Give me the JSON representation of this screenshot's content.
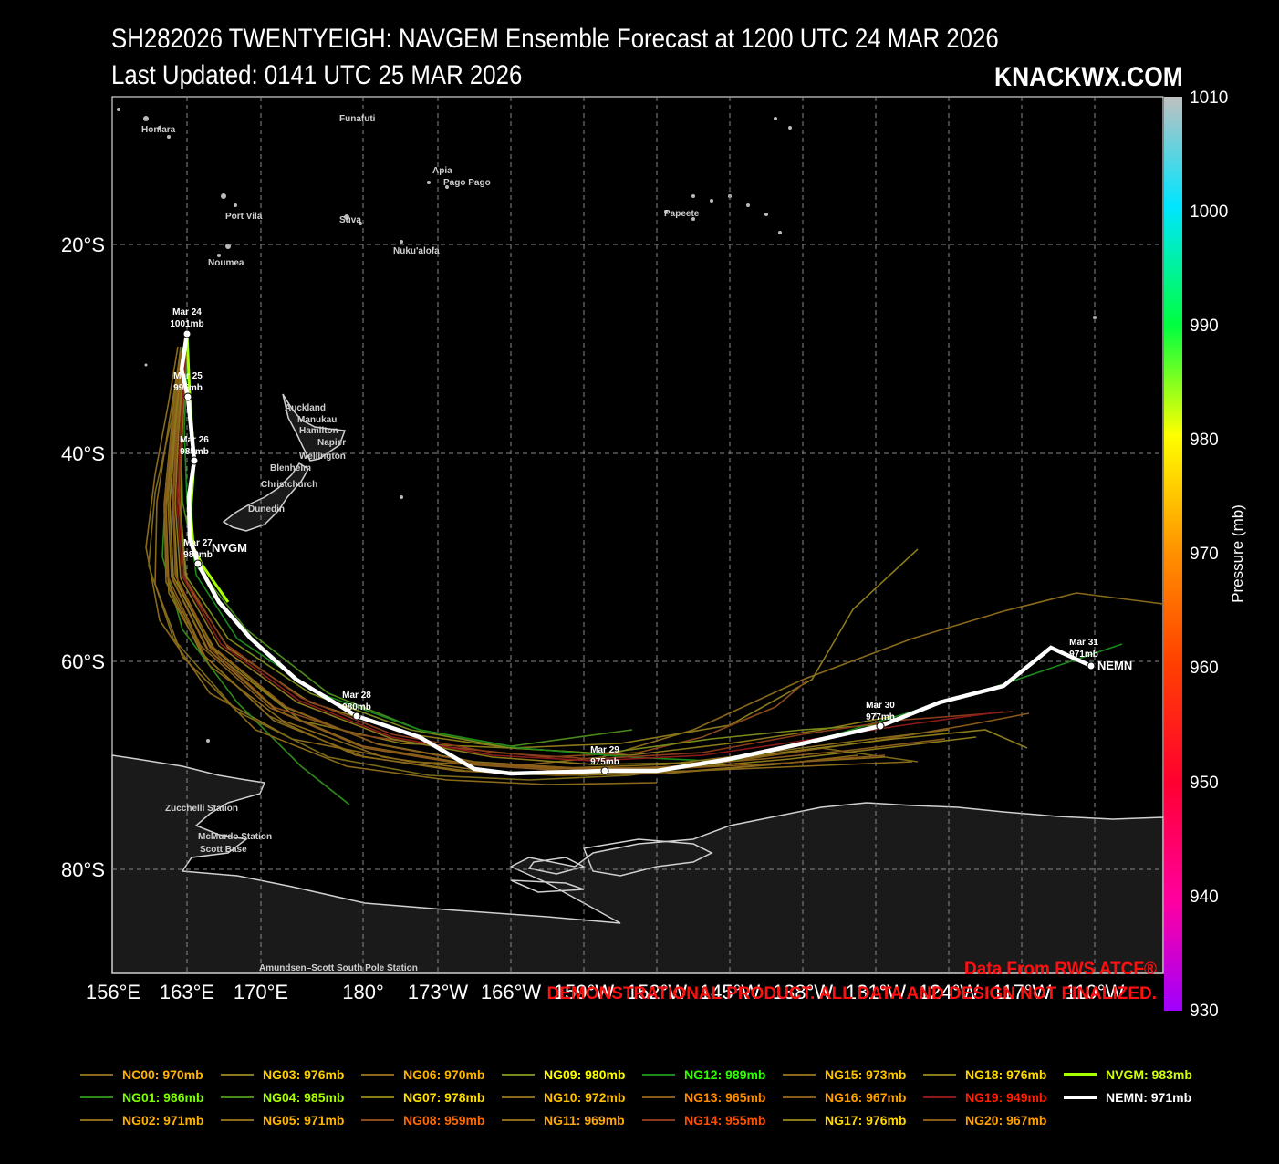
{
  "header": {
    "title_line1": "SH282026 TWENTYEIGH: NAVGEM Ensemble Forecast at 1200 UTC 24 MAR 2026",
    "title_line2": "Last Updated: 0141 UTC 25 MAR 2026",
    "brand": "KNACKWX.COM"
  },
  "axes": {
    "lon_ticks": [
      "156°E",
      "163°E",
      "170°E",
      "180°",
      "173°W",
      "166°W",
      "159°W",
      "152°W",
      "145°W",
      "138°W",
      "131°W",
      "124°W",
      "117°W",
      "110°W"
    ],
    "lat_ticks": [
      "20°S",
      "40°S",
      "60°S",
      "80°S"
    ]
  },
  "colorbar": {
    "label": "Pressure (mb)",
    "ticks": [
      "1010",
      "1000",
      "990",
      "980",
      "970",
      "960",
      "950",
      "940",
      "930"
    ]
  },
  "places": [
    {
      "name": "Funafuti",
      "id": "funafuti"
    },
    {
      "name": "Honiara",
      "id": "honiara"
    },
    {
      "name": "Apia",
      "id": "apia"
    },
    {
      "name": "Pago Pago",
      "id": "pago-pago"
    },
    {
      "name": "Port Vila",
      "id": "port-vila"
    },
    {
      "name": "Suva",
      "id": "suva"
    },
    {
      "name": "Papeete",
      "id": "papeete"
    },
    {
      "name": "Nuku'alofa",
      "id": "nukualofa"
    },
    {
      "name": "Noumea",
      "id": "noumea"
    },
    {
      "name": "Auckland",
      "id": "auckland"
    },
    {
      "name": "Manukau",
      "id": "manukau"
    },
    {
      "name": "Hamilton",
      "id": "hamilton"
    },
    {
      "name": "Napier",
      "id": "napier"
    },
    {
      "name": "Wellington",
      "id": "wellington"
    },
    {
      "name": "Blenheim",
      "id": "blenheim"
    },
    {
      "name": "Christchurch",
      "id": "christchurch"
    },
    {
      "name": "Dunedin",
      "id": "dunedin"
    },
    {
      "name": "Zucchelli Station",
      "id": "zucchelli"
    },
    {
      "name": "McMurdo Station",
      "id": "mcmurdo"
    },
    {
      "name": "Scott Base",
      "id": "scott-base"
    },
    {
      "name": "Amundsen–Scott South Pole Station",
      "id": "south-pole"
    }
  ],
  "track_labels": [
    {
      "date": "Mar 24",
      "pres": "1001mb"
    },
    {
      "date": "Mar 25",
      "pres": "995mb"
    },
    {
      "date": "Mar 26",
      "pres": "985mb"
    },
    {
      "date": "Mar 27",
      "pres": "989mb"
    },
    {
      "date": "Mar 28",
      "pres": "980mb"
    },
    {
      "date": "Mar 29",
      "pres": "975mb"
    },
    {
      "date": "Mar 30",
      "pres": "977mb"
    },
    {
      "date": "Mar 31",
      "pres": "971mb"
    }
  ],
  "track_end_labels": {
    "nvgm": "NVGM",
    "nemn": "NEMN"
  },
  "watermark": {
    "line1": "Data From RWS ATCF®",
    "line2": "DEMONSTRATIONAL PRODUCT. ALL DATA AND DESIGN NOT FINALIZED."
  },
  "legend": [
    {
      "label": "NC00: 970mb",
      "color": "#8a6a1a",
      "text_color": "#ffb300"
    },
    {
      "label": "NG01: 986mb",
      "color": "#2e8a1a",
      "text_color": "#7cff00"
    },
    {
      "label": "NG02: 971mb",
      "color": "#8a6a1a",
      "text_color": "#ffb300"
    },
    {
      "label": "NG03: 976mb",
      "color": "#8a7a1a",
      "text_color": "#ffd000"
    },
    {
      "label": "NG04: 985mb",
      "color": "#4a8a1a",
      "text_color": "#a8ff00"
    },
    {
      "label": "NG05: 971mb",
      "color": "#8a6a1a",
      "text_color": "#ffb300"
    },
    {
      "label": "NG06: 970mb",
      "color": "#8a6a1a",
      "text_color": "#ffb300"
    },
    {
      "label": "NG07: 978mb",
      "color": "#8a7a1a",
      "text_color": "#ffe000"
    },
    {
      "label": "NG08: 959mb",
      "color": "#8a4a1a",
      "text_color": "#ff6a00"
    },
    {
      "label": "NG09: 980mb",
      "color": "#7a8a1a",
      "text_color": "#ffff00"
    },
    {
      "label": "NG10: 972mb",
      "color": "#8a6a1a",
      "text_color": "#ffc000"
    },
    {
      "label": "NG11: 969mb",
      "color": "#8a6a1a",
      "text_color": "#ffa800"
    },
    {
      "label": "NG12: 989mb",
      "color": "#1a8a1a",
      "text_color": "#30ff00"
    },
    {
      "label": "NG13: 965mb",
      "color": "#8a5a1a",
      "text_color": "#ff8c00"
    },
    {
      "label": "NG14: 955mb",
      "color": "#8a3a1a",
      "text_color": "#ff5000"
    },
    {
      "label": "NG15: 973mb",
      "color": "#8a6a1a",
      "text_color": "#ffc400"
    },
    {
      "label": "NG16: 967mb",
      "color": "#8a5a1a",
      "text_color": "#ffa000"
    },
    {
      "label": "NG17: 976mb",
      "color": "#8a7a1a",
      "text_color": "#ffd800"
    },
    {
      "label": "NG18: 976mb",
      "color": "#8a7a1a",
      "text_color": "#ffd800"
    },
    {
      "label": "NG19: 949mb",
      "color": "#8a1a1a",
      "text_color": "#ff2000"
    },
    {
      "label": "NG20: 967mb",
      "color": "#8a5a1a",
      "text_color": "#ffa000"
    },
    {
      "label": "NVGM: 983mb",
      "color": "#a8ff00",
      "text_color": "#d0ff00",
      "thick": true
    },
    {
      "label": "NEMN: 971mb",
      "color": "#ffffff",
      "text_color": "#ffffff",
      "thick": true
    }
  ]
}
